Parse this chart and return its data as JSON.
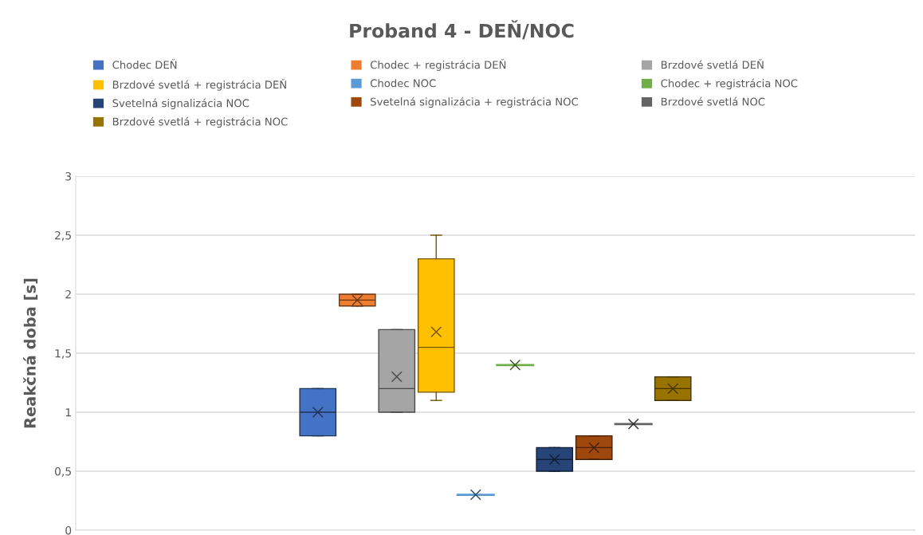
{
  "chart_data": {
    "type": "box",
    "title": "Proband 4 - DEŇ/NOC",
    "ylabel": "Reakčná doba [s]",
    "categories": [
      null
    ],
    "series": [
      {
        "name": "Chodec DEŇ",
        "color": "#4472c4",
        "boxes": [
          {
            "low": 0.8,
            "q1": 0.8,
            "median": 1.0,
            "q3": 1.2,
            "high": 1.2,
            "mean": 1.0
          }
        ]
      },
      {
        "name": "Chodec + registrácia DEŇ",
        "color": "#ed7d31",
        "boxes": [
          {
            "low": 1.9,
            "q1": 1.9,
            "median": 1.95,
            "q3": 2.0,
            "high": 2.0,
            "mean": 1.95
          }
        ]
      },
      {
        "name": "Brzdové svetlá DEŇ",
        "color": "#a5a5a5",
        "boxes": [
          {
            "low": 1.0,
            "q1": 1.0,
            "median": 1.2,
            "q3": 1.7,
            "high": 1.7,
            "mean": 1.3
          }
        ]
      },
      {
        "name": "Brzdové svetlá + registrácia DEŇ",
        "color": "#ffc000",
        "boxes": [
          {
            "low": 1.1,
            "q1": 1.17,
            "median": 1.55,
            "q3": 2.3,
            "high": 2.5,
            "mean": 1.68
          }
        ]
      },
      {
        "name": "Chodec NOC",
        "color": "#5b9bd5",
        "boxes": [
          {
            "low": 0.3,
            "q1": 0.3,
            "median": 0.3,
            "q3": 0.3,
            "high": 0.3,
            "mean": 0.3
          }
        ]
      },
      {
        "name": "Chodec + registrácia NOC",
        "color": "#70ad47",
        "boxes": [
          {
            "low": 1.4,
            "q1": 1.4,
            "median": 1.4,
            "q3": 1.4,
            "high": 1.4,
            "mean": 1.4
          }
        ]
      },
      {
        "name": "Svetelná signalizácia NOC",
        "color": "#264478",
        "boxes": [
          {
            "low": 0.5,
            "q1": 0.5,
            "median": 0.6,
            "q3": 0.7,
            "high": 0.7,
            "mean": 0.6
          }
        ]
      },
      {
        "name": "Svetelná signalizácia + registrácia NOC",
        "color": "#9e480e",
        "boxes": [
          {
            "low": 0.6,
            "q1": 0.6,
            "median": 0.7,
            "q3": 0.8,
            "high": 0.8,
            "mean": 0.7
          }
        ]
      },
      {
        "name": "Brzdové svetlá NOC",
        "color": "#636363",
        "boxes": [
          {
            "low": 0.9,
            "q1": 0.9,
            "median": 0.9,
            "q3": 0.9,
            "high": 0.9,
            "mean": 0.9
          }
        ]
      },
      {
        "name": "Brzdové svetlá + registrácia NOC",
        "color": "#997300",
        "boxes": [
          {
            "low": 1.1,
            "q1": 1.1,
            "median": 1.2,
            "q3": 1.3,
            "high": 1.3,
            "mean": 1.2
          }
        ]
      }
    ],
    "ylim": [
      0,
      3
    ],
    "yticks": [
      0,
      {
        "value": 0.5,
        "label": "0,5"
      },
      1,
      {
        "value": 1.5,
        "label": "1,5"
      },
      2,
      {
        "value": 2.5,
        "label": "2,5"
      },
      3
    ],
    "grid": "y",
    "legend": "top",
    "marker": "cross"
  }
}
